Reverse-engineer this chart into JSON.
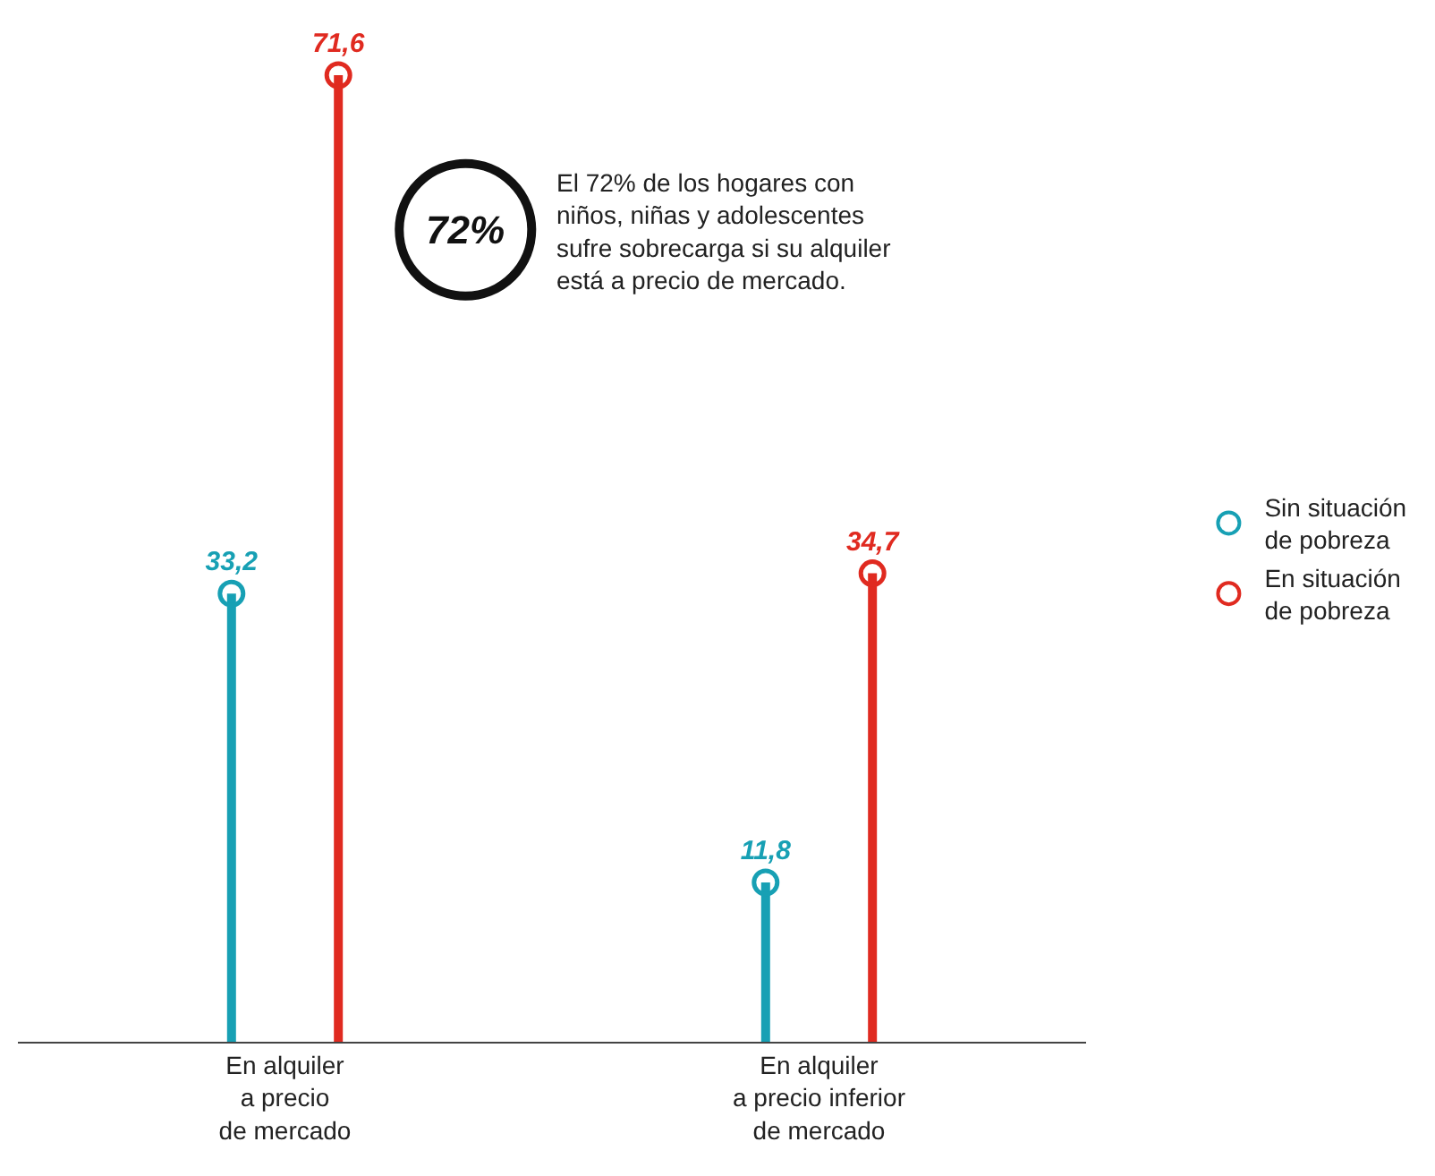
{
  "chart_data": {
    "type": "lollipop",
    "categories": [
      "En alquiler a precio de mercado",
      "En alquiler a precio inferior de mercado"
    ],
    "series": [
      {
        "name": "Sin situación de pobreza",
        "color": "#17a0b4",
        "values": [
          33.2,
          11.8
        ],
        "value_labels": [
          "33,2",
          "11,8"
        ]
      },
      {
        "name": "En situación de pobreza",
        "color": "#e02a20",
        "values": [
          71.6,
          34.7
        ],
        "value_labels": [
          "71,6",
          "34,7"
        ]
      }
    ],
    "legend": "right",
    "marker": "circle",
    "annotations": [
      "72%",
      "El 72% de los hogares con niños, niñas y adolescentes sufre sobrecarga si su alquiler está a precio de mercado."
    ]
  }
}
